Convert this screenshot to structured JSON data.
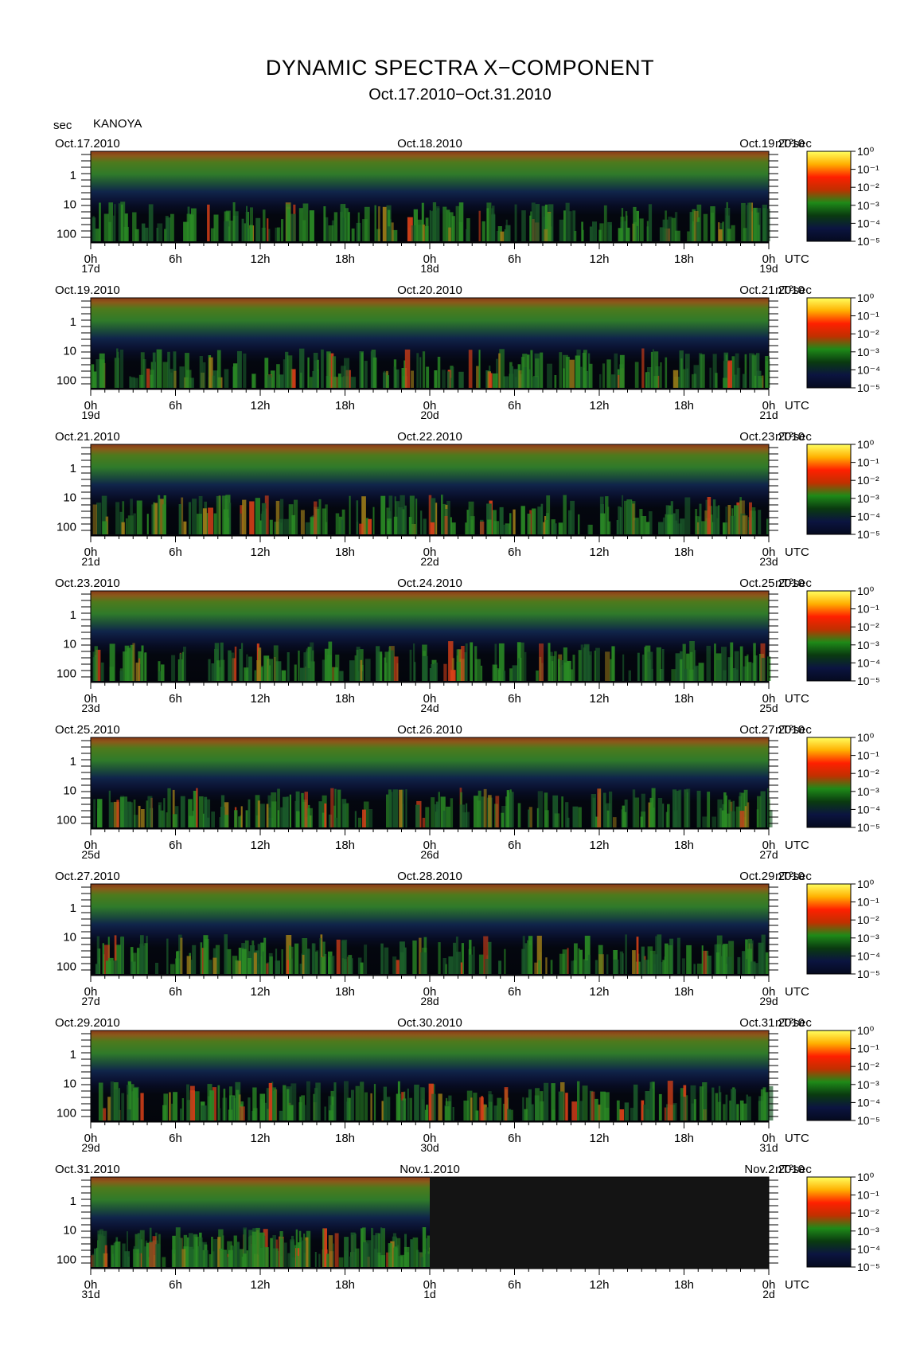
{
  "header": {
    "title": "DYNAMIC SPECTRA X−COMPONENT",
    "subtitle": "Oct.17.2010−Oct.31.2010",
    "unit_left": "sec",
    "station": "KANOYA"
  },
  "chart_data": {
    "type": "heatmap",
    "title": "DYNAMIC SPECTRA X−COMPONENT",
    "subtitle": "Oct.17.2010−Oct.31.2010",
    "ylabel": "sec",
    "y_scale": "log",
    "y_ticks": [
      "1",
      "10",
      "100"
    ],
    "x_ticks": [
      "0h",
      "6h",
      "12h",
      "18h",
      "0h",
      "6h",
      "12h",
      "18h",
      "0h"
    ],
    "x_unit": "UTC",
    "colorbar": {
      "unit": "nT²sec",
      "labels": [
        "10⁰",
        "10⁻¹",
        "10⁻²",
        "10⁻³",
        "10⁻⁴",
        "10⁻⁵"
      ],
      "colors": [
        "#ffff60",
        "#ffb000",
        "#ff2000",
        "#c03000",
        "#1e8a18",
        "#0a3a10",
        "#0b1440",
        "#050a1e"
      ]
    },
    "panels": [
      {
        "date_left": "Oct.17.2010",
        "date_mid": "Oct.18.2010",
        "date_right": "Oct.19.2010",
        "days": [
          "17d",
          "18d",
          "19d"
        ],
        "data_until": 1.0
      },
      {
        "date_left": "Oct.19.2010",
        "date_mid": "Oct.20.2010",
        "date_right": "Oct.21.2010",
        "days": [
          "19d",
          "20d",
          "21d"
        ],
        "data_until": 1.0
      },
      {
        "date_left": "Oct.21.2010",
        "date_mid": "Oct.22.2010",
        "date_right": "Oct.23.2010",
        "days": [
          "21d",
          "22d",
          "23d"
        ],
        "data_until": 1.0
      },
      {
        "date_left": "Oct.23.2010",
        "date_mid": "Oct.24.2010",
        "date_right": "Oct.25.2010",
        "days": [
          "23d",
          "24d",
          "25d"
        ],
        "data_until": 1.0
      },
      {
        "date_left": "Oct.25.2010",
        "date_mid": "Oct.26.2010",
        "date_right": "Oct.27.2010",
        "days": [
          "25d",
          "26d",
          "27d"
        ],
        "data_until": 1.0
      },
      {
        "date_left": "Oct.27.2010",
        "date_mid": "Oct.28.2010",
        "date_right": "Oct.29.2010",
        "days": [
          "27d",
          "28d",
          "29d"
        ],
        "data_until": 1.0
      },
      {
        "date_left": "Oct.29.2010",
        "date_mid": "Oct.30.2010",
        "date_right": "Oct.31.2010",
        "days": [
          "29d",
          "30d",
          "31d"
        ],
        "data_until": 1.0
      },
      {
        "date_left": "Oct.31.2010",
        "date_mid": "Nov.1.2010",
        "date_right": "Nov.2.2010",
        "days": [
          "31d",
          "1d",
          "2d"
        ],
        "data_until": 0.5
      }
    ]
  }
}
